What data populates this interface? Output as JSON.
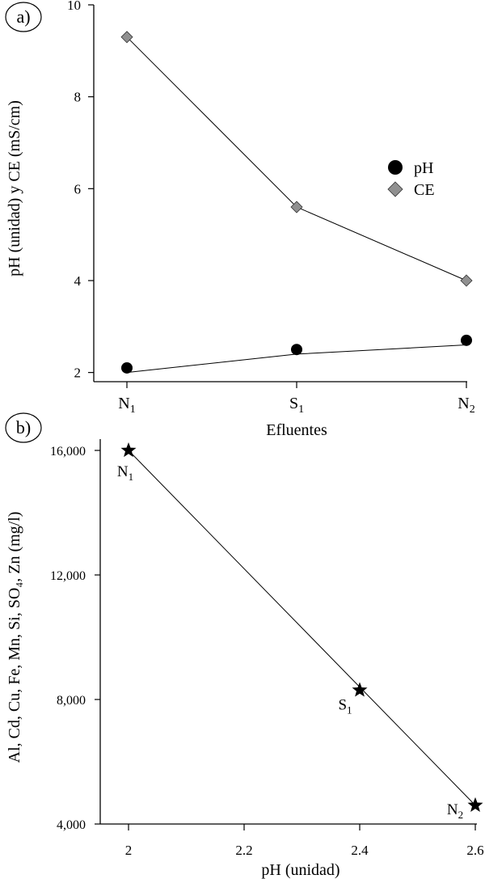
{
  "chart_data": [
    {
      "panel_label": "a)",
      "type": "line",
      "xlabel": "Efluentes",
      "ylabel": "pH (unidad) y CE (mS/cm)",
      "categories": [
        {
          "base": "N",
          "sub": "1"
        },
        {
          "base": "S",
          "sub": "1"
        },
        {
          "base": "N",
          "sub": "2"
        }
      ],
      "ylim": [
        1.8,
        10
      ],
      "yticks": [
        2,
        4,
        6,
        8,
        10
      ],
      "series": [
        {
          "name": "pH",
          "marker": "circle",
          "color": "#000000",
          "values": [
            2.1,
            2.5,
            2.7
          ]
        },
        {
          "name": "CE",
          "marker": "diamond",
          "color": "#909090",
          "values": [
            9.3,
            5.6,
            4.0
          ]
        }
      ],
      "fit_lines": {
        "pH": [
          2.0,
          2.4,
          2.6
        ],
        "CE": [
          9.3,
          5.6,
          4.0
        ]
      },
      "legend": {
        "position": "right"
      }
    },
    {
      "panel_label": "b)",
      "type": "scatter",
      "xlabel": "pH (unidad)",
      "ylabel": "Al, Cd, Cu, Fe, Mn, Si, SO₄, Zn (mg/l)",
      "xlim": [
        1.95,
        2.6
      ],
      "ylim": [
        4000,
        16000
      ],
      "xticks": [
        2,
        2.2,
        2.4,
        2.6
      ],
      "xtick_labels": [
        "2",
        "2.2",
        "2.4",
        "2.6"
      ],
      "yticks": [
        4000,
        8000,
        12000,
        16000
      ],
      "ytick_labels": [
        "4,000",
        "8,000",
        "12,000",
        "16,000"
      ],
      "points": [
        {
          "label": {
            "base": "N",
            "sub": "1"
          },
          "x": 2.0,
          "y": 16000
        },
        {
          "label": {
            "base": "S",
            "sub": "1"
          },
          "x": 2.4,
          "y": 8300
        },
        {
          "label": {
            "base": "N",
            "sub": "2"
          },
          "x": 2.6,
          "y": 4600
        }
      ],
      "marker": "star",
      "fit_line": [
        [
          2.0,
          16000
        ],
        [
          2.6,
          4600
        ]
      ]
    }
  ]
}
